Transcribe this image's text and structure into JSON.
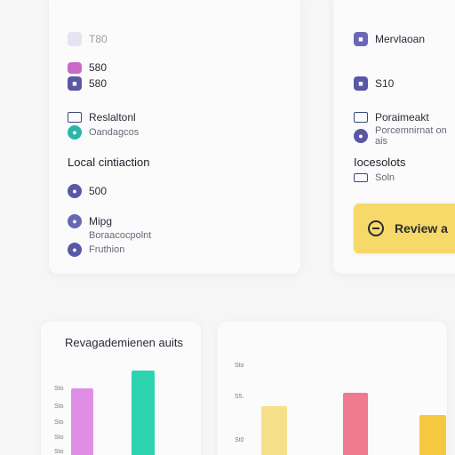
{
  "left_card": {
    "items": [
      {
        "label": "T80",
        "icon": "placeholder-icon",
        "color": "#c9c9e8"
      },
      {
        "label": "580",
        "icon": "tag-icon",
        "color": "#c96acb"
      },
      {
        "label": "580",
        "icon": "bookmark-icon",
        "color": "#5a57a6"
      },
      {
        "label": "Reslaltonl",
        "icon": "card-icon",
        "color": "#3c4a7a"
      },
      {
        "label": "Oandagcos",
        "icon": "teal-dot-icon",
        "color": "#2bb6a8"
      }
    ],
    "section_title": "Local cintiaction",
    "items2": [
      {
        "label": "500",
        "icon": "coin-icon",
        "color": "#5a57a6"
      },
      {
        "label": "Mipg",
        "icon": "map-pin-icon",
        "color": "#6667b5"
      },
      {
        "label": "Boraacocpolnt",
        "icon": "",
        "color": ""
      },
      {
        "label": "Fruthion",
        "icon": "fruit-icon",
        "color": "#5a57a6"
      }
    ]
  },
  "right_card": {
    "items": [
      {
        "label": "Mervlaoan",
        "icon": "user-icon",
        "color": "#6a67b8"
      },
      {
        "label": "S10",
        "icon": "bookmark-icon",
        "color": "#5a57a6"
      },
      {
        "label": "Poraimeakt",
        "icon": "folder-icon",
        "color": "#3c4a7a"
      },
      {
        "label": "Porcemnirnat on ais",
        "icon": "info-icon",
        "color": "#5a57a6"
      }
    ],
    "section_title": "Iocesolots",
    "sub": {
      "label": "Soln",
      "icon": "id-icon"
    }
  },
  "review_button": {
    "label": "Review a"
  },
  "chart_panel": {
    "title": "Revagademienen auits"
  },
  "chart_data": {
    "type": "bar",
    "left": {
      "ticks": [
        "Sto",
        "Sto",
        "Sto",
        "Sto",
        "Sto"
      ],
      "bars": [
        {
          "value": 75,
          "color": "#e08de6"
        },
        {
          "value": 95,
          "color": "#2ed4b0"
        }
      ]
    },
    "right": {
      "ticks": [
        "Sto",
        "S5.",
        "St0"
      ],
      "bars": [
        {
          "value": 55,
          "color": "#f7e08a"
        },
        {
          "value": 70,
          "color": "#f07a8f"
        },
        {
          "value": 45,
          "color": "#f5c840"
        }
      ]
    },
    "ylim": [
      0,
      100
    ]
  }
}
